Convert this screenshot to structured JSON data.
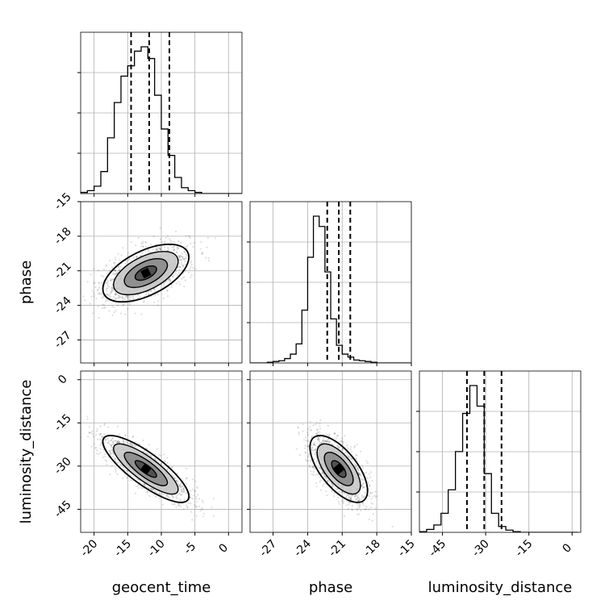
{
  "chart_data": {
    "type": "corner",
    "parameters": [
      {
        "name": "geocent_time",
        "label": "geocent_time",
        "range": [
          -22,
          2
        ],
        "ticks": [
          -20,
          -15,
          -10,
          -5,
          0
        ],
        "median": -11.8,
        "q_low": -14.5,
        "q_high": -8.8
      },
      {
        "name": "phase",
        "label": "phase",
        "range": [
          -29,
          -15
        ],
        "ticks": [
          -27,
          -24,
          -21,
          -18,
          -15
        ],
        "median": -21.3,
        "q_low": -22.3,
        "q_high": -20.3
      },
      {
        "name": "luminosity_distance",
        "label": "luminosity_distance",
        "range": [
          -53,
          3
        ],
        "ticks": [
          -45,
          -30,
          -15,
          0
        ],
        "median": -30.5,
        "q_low": -36.5,
        "q_high": -24.5
      }
    ],
    "histograms": [
      {
        "param": "geocent_time",
        "bin_start": -22,
        "bin_width": 1,
        "counts": [
          0.008,
          0.02,
          0.05,
          0.15,
          0.38,
          0.62,
          0.8,
          0.87,
          0.97,
          1.0,
          0.92,
          0.67,
          0.44,
          0.26,
          0.11,
          0.04,
          0.02,
          0.008,
          0,
          0,
          0,
          0,
          0,
          0
        ]
      },
      {
        "param": "phase",
        "bin_start": -29,
        "bin_width": 0.5,
        "counts": [
          0,
          0,
          0,
          0.005,
          0.01,
          0.015,
          0.03,
          0.06,
          0.13,
          0.36,
          0.72,
          1.0,
          0.93,
          0.62,
          0.3,
          0.12,
          0.06,
          0.04,
          0.02,
          0.015,
          0.01,
          0.005,
          0,
          0,
          0,
          0,
          0,
          0
        ]
      },
      {
        "param": "luminosity_distance",
        "bin_start": -53,
        "bin_width": 2.5,
        "counts": [
          0.005,
          0.02,
          0.05,
          0.13,
          0.29,
          0.55,
          0.81,
          1.0,
          0.86,
          0.4,
          0.13,
          0.04,
          0.015,
          0.005,
          0,
          0,
          0,
          0,
          0,
          0,
          0,
          0
        ]
      }
    ],
    "contours_2d": [
      {
        "x": "geocent_time",
        "y": "phase",
        "mean": [
          -12.3,
          -21.2
        ],
        "sd_x": 3.2,
        "sd_y": 1.25,
        "rho": 0.55
      },
      {
        "x": "geocent_time",
        "y": "luminosity_distance",
        "mean": [
          -12.3,
          -31.0
        ],
        "sd_x": 3.2,
        "sd_y": 5.8,
        "rho": -0.82
      },
      {
        "x": "phase",
        "y": "luminosity_distance",
        "mean": [
          -21.3,
          -31.0
        ],
        "sd_x": 1.25,
        "sd_y": 5.8,
        "rho": -0.65
      }
    ],
    "contour_levels_sigma": [
      0.5,
      1.0,
      1.5,
      2.0
    ],
    "grid": true,
    "quantile_lines": "dashed"
  }
}
